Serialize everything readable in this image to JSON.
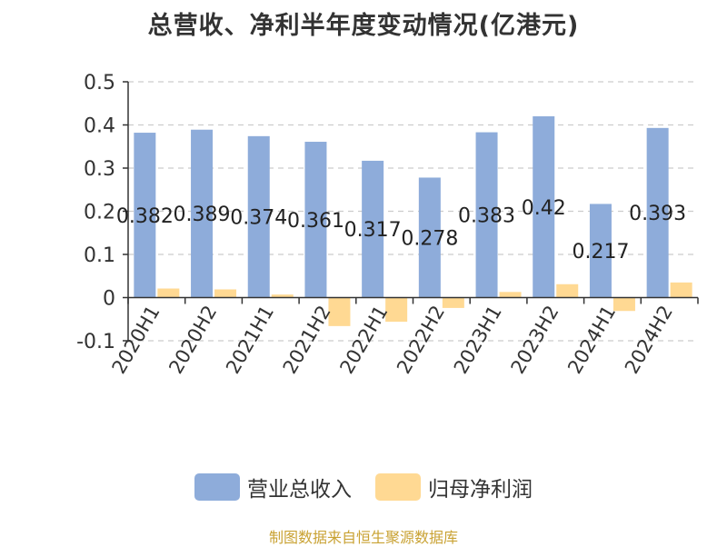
{
  "title": "总营收、净利半年度变动情况(亿港元)",
  "colors": {
    "revenue": "#8eacda",
    "net_profit": "#ffd993",
    "axis": "#333333",
    "grid": "#cccccc",
    "source": "#c9a233"
  },
  "legend": {
    "revenue_label": "营业总收入",
    "net_profit_label": "归母净利润"
  },
  "source_note": "制图数据来自恒生聚源数据库",
  "chart_data": {
    "type": "bar",
    "categories": [
      "2020H1",
      "2020H2",
      "2021H1",
      "2021H2",
      "2022H1",
      "2022H2",
      "2023H1",
      "2023H2",
      "2024H1",
      "2024H2"
    ],
    "series": [
      {
        "name": "营业总收入",
        "values": [
          0.382,
          0.389,
          0.374,
          0.361,
          0.317,
          0.278,
          0.383,
          0.42,
          0.217,
          0.393
        ],
        "data_labels": [
          "0.382",
          "0.389",
          "0.374",
          "0.361",
          "0.317",
          "0.278",
          "0.383",
          "0.42",
          "0.217",
          "0.393"
        ]
      },
      {
        "name": "归母净利润",
        "values": [
          0.021,
          0.019,
          0.007,
          -0.066,
          -0.056,
          -0.024,
          0.013,
          0.031,
          -0.031,
          0.035
        ]
      }
    ],
    "ylim": [
      -0.1,
      0.5
    ],
    "yticks": [
      -0.1,
      0,
      0.1,
      0.2,
      0.3,
      0.4,
      0.5
    ],
    "ytick_labels": [
      "-0.1",
      "0",
      "0.1",
      "0.2",
      "0.3",
      "0.4",
      "0.5"
    ],
    "grid": true,
    "legend_position": "bottom",
    "xlabel": "",
    "ylabel": ""
  }
}
